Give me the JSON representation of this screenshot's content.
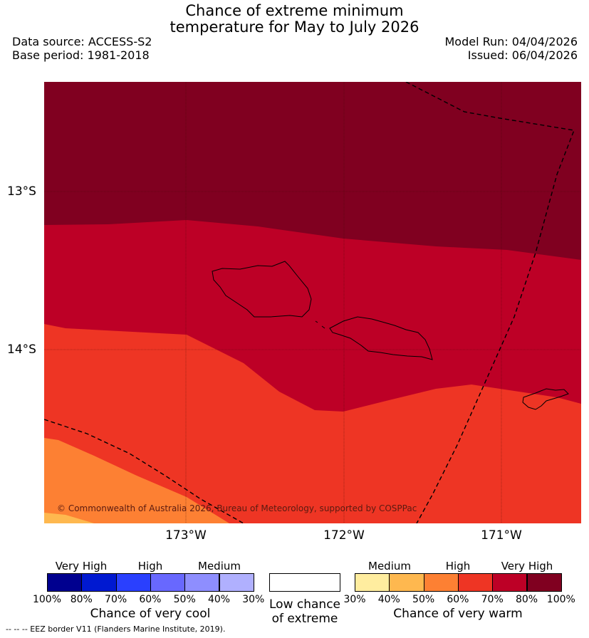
{
  "header": {
    "title_line1": "Chance of extreme minimum",
    "title_line2": "temperature for May to July 2026",
    "data_source": "Data source: ACCESS-S2",
    "base_period": "Base period: 1981-2018",
    "model_run": "Model Run: 04/04/2026",
    "issued": "Issued: 06/04/2026"
  },
  "map": {
    "lat_labels": [
      "13°S",
      "14°S"
    ],
    "lon_labels": [
      "173°W",
      "172°W",
      "171°W"
    ],
    "copyright": "© Commonwealth of Australia 2026, Bureau of Meteorology, supported by COSPPac",
    "colors": {
      "very_high_warm_90_100": "#800020",
      "very_high_warm_80_90": "#bd0026",
      "high_warm_70_80": "#ee3524",
      "high_warm_60_70": "#fd8033",
      "medium_warm_50_60": "#feb84f"
    }
  },
  "legend": {
    "cool": {
      "headers": [
        "Very High",
        "High",
        "Medium"
      ],
      "ticks": [
        "100%",
        "80%",
        "70%",
        "60%",
        "50%",
        "40%",
        "30%"
      ],
      "colors": [
        "#00008f",
        "#0019d1",
        "#2a40fe",
        "#6868fe",
        "#8e8efe",
        "#b0b0fe"
      ],
      "title": "Chance of very cool"
    },
    "neutral": {
      "title_line1": "Low chance",
      "title_line2": "of extreme",
      "color": "#ffffff"
    },
    "warm": {
      "headers": [
        "Medium",
        "High",
        "Very High"
      ],
      "ticks": [
        "30%",
        "40%",
        "50%",
        "60%",
        "70%",
        "80%",
        "100%"
      ],
      "colors": [
        "#ffed9f",
        "#feb84f",
        "#fd8033",
        "#ee3524",
        "#bd0026",
        "#800020"
      ],
      "title": "Chance of very warm"
    }
  },
  "footer": {
    "eez_note": "--  --  -- EEZ border V11 (Flanders Marine Institute, 2019)."
  }
}
